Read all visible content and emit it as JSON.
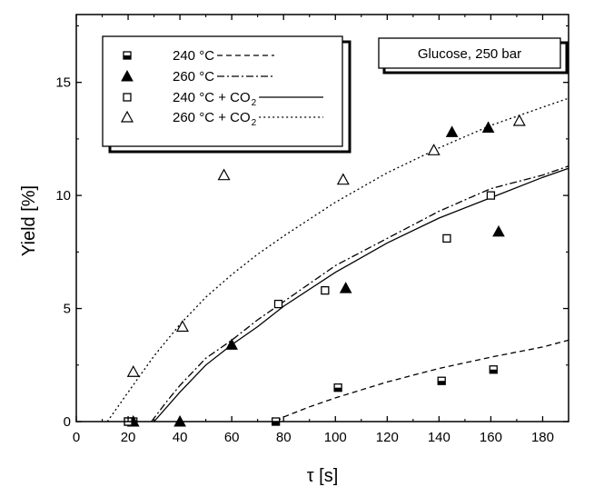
{
  "chart_data": {
    "type": "scatter",
    "xlabel": "τ [s]",
    "ylabel": "Yield [%]",
    "xlim": [
      0,
      190
    ],
    "ylim": [
      0,
      18
    ],
    "xticks": [
      0,
      20,
      40,
      60,
      80,
      100,
      120,
      140,
      160,
      180
    ],
    "yticks": [
      0,
      5,
      10,
      15
    ],
    "annotation": "Glucose, 250 bar",
    "series": [
      {
        "name": "240 °C",
        "marker": "square-half-filled",
        "line": "dashed",
        "points": [
          [
            20,
            0
          ],
          [
            22,
            0
          ],
          [
            77,
            0
          ],
          [
            101,
            1.5
          ],
          [
            141,
            1.8
          ],
          [
            161,
            2.3
          ]
        ],
        "fit": [
          [
            77,
            0
          ],
          [
            80,
            0.2
          ],
          [
            90,
            0.65
          ],
          [
            100,
            1.05
          ],
          [
            120,
            1.75
          ],
          [
            140,
            2.35
          ],
          [
            160,
            2.85
          ],
          [
            180,
            3.3
          ],
          [
            190,
            3.6
          ]
        ]
      },
      {
        "name": "260 °C",
        "marker": "triangle-filled",
        "line": "dash-dot",
        "points": [
          [
            22,
            0
          ],
          [
            40,
            0
          ],
          [
            60,
            3.4
          ],
          [
            104,
            5.9
          ],
          [
            145,
            12.8
          ],
          [
            159,
            13
          ],
          [
            163,
            8.4
          ]
        ],
        "fit": [
          [
            29,
            0
          ],
          [
            35,
            0.9
          ],
          [
            40,
            1.6
          ],
          [
            50,
            2.8
          ],
          [
            60,
            3.6
          ],
          [
            70,
            4.5
          ],
          [
            80,
            5.3
          ],
          [
            100,
            6.9
          ],
          [
            120,
            8.1
          ],
          [
            140,
            9.3
          ],
          [
            160,
            10.3
          ],
          [
            180,
            10.9
          ],
          [
            190,
            11.3
          ]
        ]
      },
      {
        "name": "240 °C + CO",
        "name_sub": "2",
        "marker": "square-open",
        "line": "solid",
        "points": [
          [
            20,
            0
          ],
          [
            78,
            5.2
          ],
          [
            96,
            5.8
          ],
          [
            143,
            8.1
          ],
          [
            160,
            10
          ]
        ],
        "fit": [
          [
            30,
            0
          ],
          [
            40,
            1.3
          ],
          [
            50,
            2.5
          ],
          [
            60,
            3.4
          ],
          [
            70,
            4.2
          ],
          [
            80,
            5.1
          ],
          [
            100,
            6.6
          ],
          [
            120,
            7.9
          ],
          [
            140,
            9
          ],
          [
            160,
            9.9
          ],
          [
            180,
            10.8
          ],
          [
            190,
            11.2
          ]
        ]
      },
      {
        "name": "260 °C + CO",
        "name_sub": "2",
        "marker": "triangle-open",
        "line": "dotted",
        "points": [
          [
            22,
            2.2
          ],
          [
            41,
            4.2
          ],
          [
            57,
            10.9
          ],
          [
            103,
            10.7
          ],
          [
            138,
            12
          ],
          [
            171,
            13.3
          ]
        ],
        "fit": [
          [
            12,
            0
          ],
          [
            20,
            1.3
          ],
          [
            30,
            2.9
          ],
          [
            40,
            4.3
          ],
          [
            50,
            5.5
          ],
          [
            60,
            6.5
          ],
          [
            70,
            7.4
          ],
          [
            80,
            8.2
          ],
          [
            100,
            9.7
          ],
          [
            120,
            11
          ],
          [
            140,
            12.1
          ],
          [
            160,
            13.1
          ],
          [
            180,
            13.9
          ],
          [
            190,
            14.3
          ]
        ]
      }
    ]
  }
}
